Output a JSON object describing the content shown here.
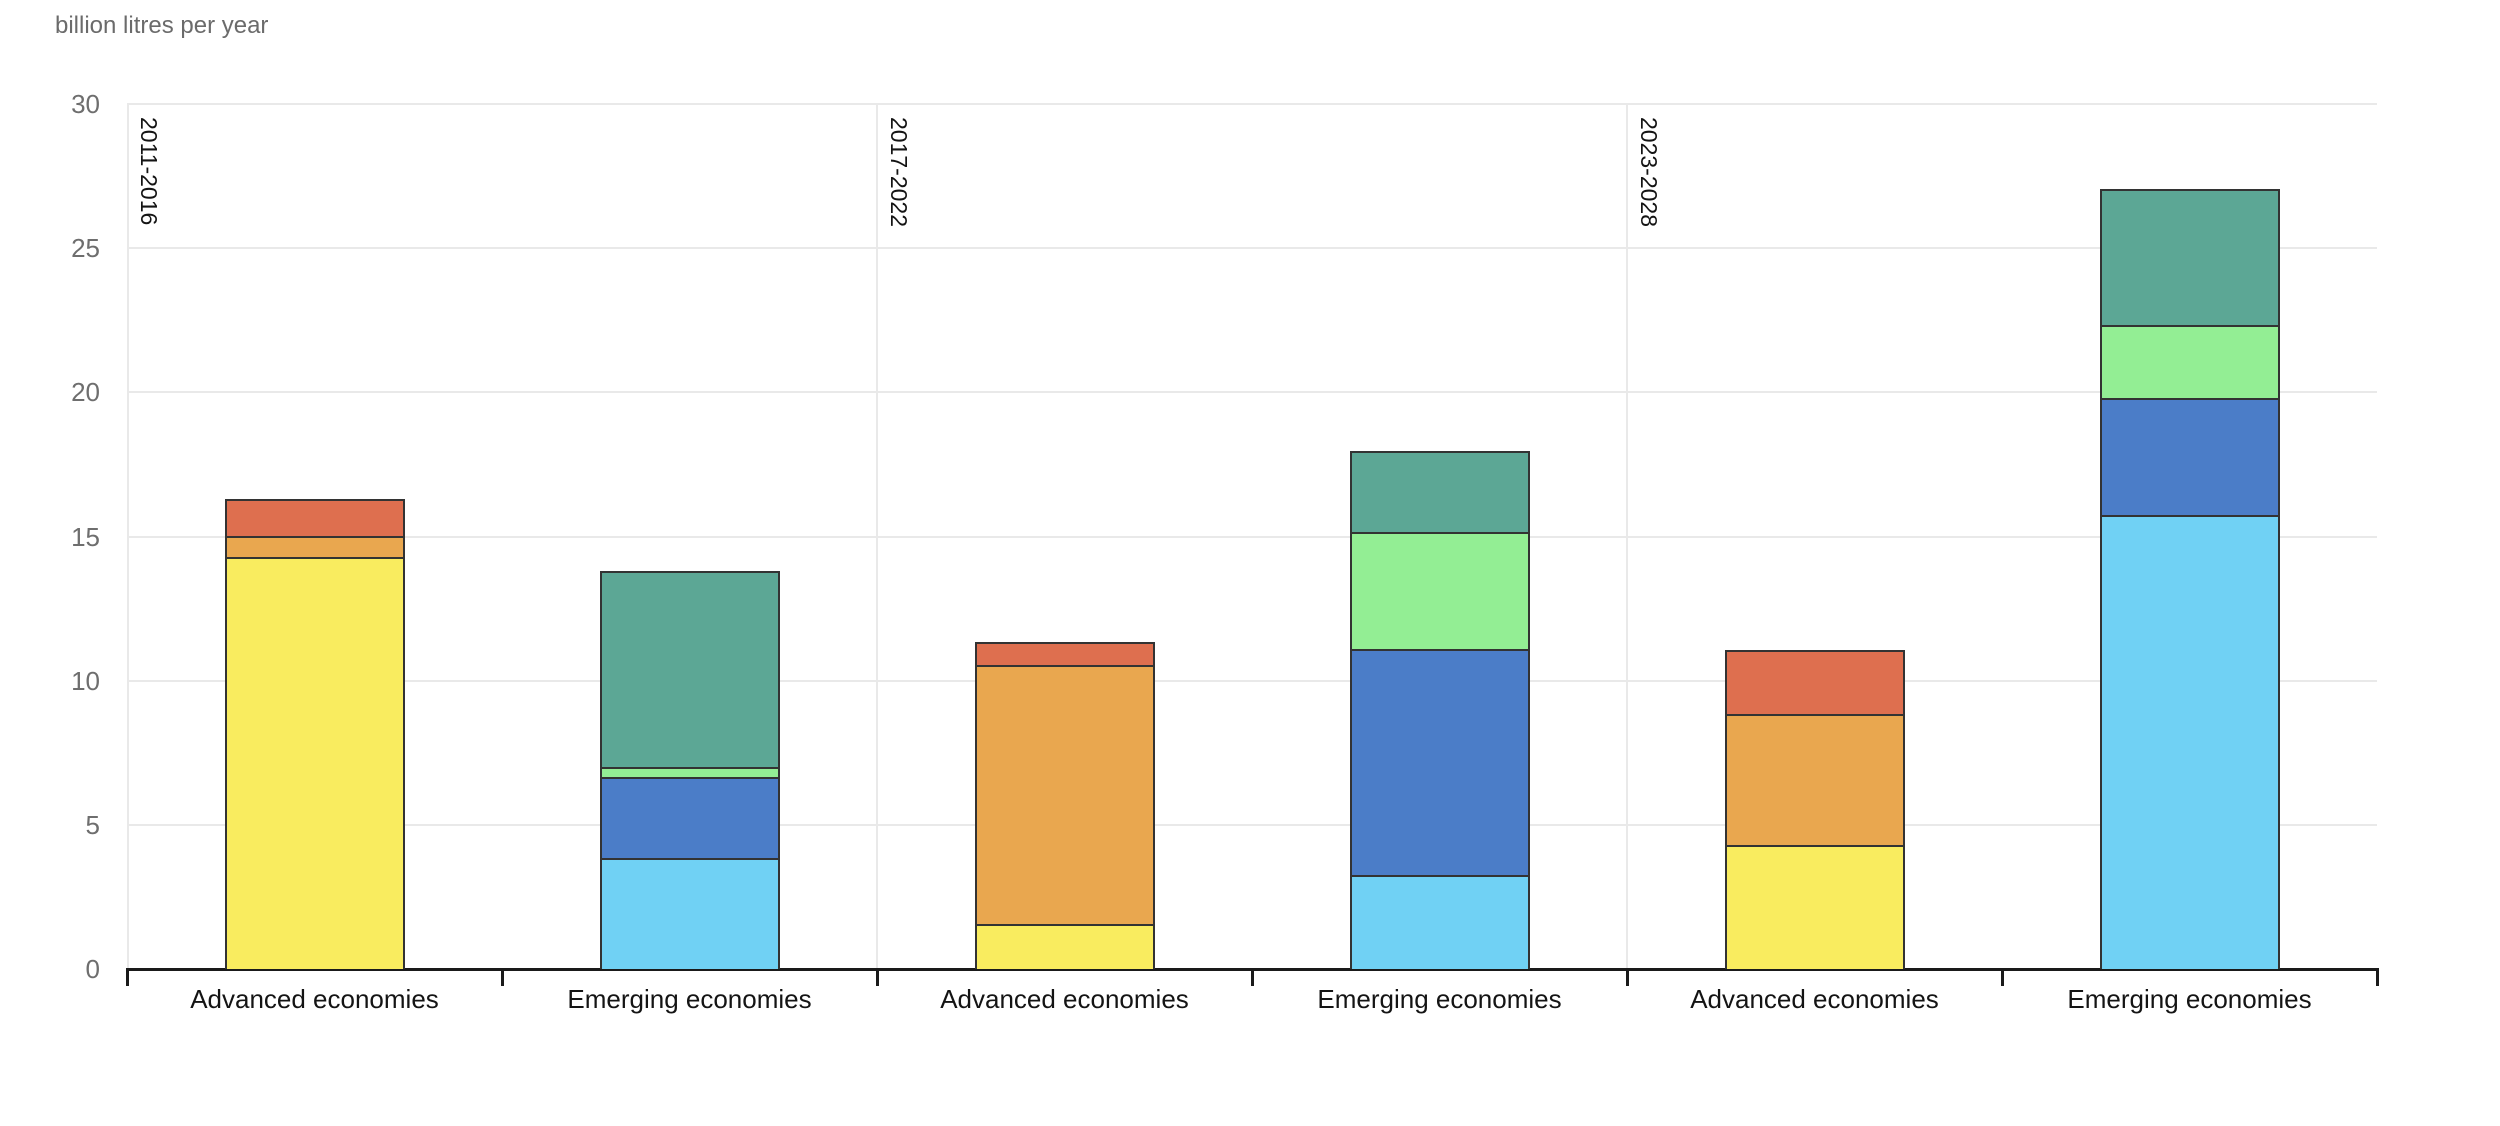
{
  "chart_data": {
    "type": "bar",
    "stacked": true,
    "title": "billion litres per year",
    "xlabel": "",
    "ylabel": "billion litres per year",
    "ylim": [
      0,
      30
    ],
    "yticks": [
      0,
      5,
      10,
      15,
      20,
      25,
      30
    ],
    "grid": "horizontal",
    "legend": "none",
    "panel_labels": [
      "2011-2016",
      "2017-2022",
      "2023-2028"
    ],
    "palette": {
      "yellow": "#F9EC5F",
      "orange": "#E9A74F",
      "red": "#DE6F4F",
      "sky_blue": "#70D1F4",
      "blue": "#4B7DC8",
      "light_green": "#93EE94",
      "teal": "#5CA795"
    },
    "bars": [
      {
        "period": "2011-2016",
        "category": "Advanced economies",
        "total": 16.3,
        "segments": [
          {
            "color": "yellow",
            "value": 14.3
          },
          {
            "color": "orange",
            "value": 0.7
          },
          {
            "color": "red",
            "value": 1.3
          }
        ]
      },
      {
        "period": "2011-2016",
        "category": "Emerging economies",
        "total": 13.8,
        "segments": [
          {
            "color": "sky_blue",
            "value": 3.85
          },
          {
            "color": "blue",
            "value": 2.8
          },
          {
            "color": "light_green",
            "value": 0.35
          },
          {
            "color": "teal",
            "value": 6.8
          }
        ]
      },
      {
        "period": "2017-2022",
        "category": "Advanced economies",
        "total": 11.35,
        "segments": [
          {
            "color": "yellow",
            "value": 1.55
          },
          {
            "color": "orange",
            "value": 9.0
          },
          {
            "color": "red",
            "value": 0.8
          }
        ]
      },
      {
        "period": "2017-2022",
        "category": "Emerging economies",
        "total": 17.95,
        "segments": [
          {
            "color": "sky_blue",
            "value": 3.25
          },
          {
            "color": "blue",
            "value": 7.85
          },
          {
            "color": "light_green",
            "value": 4.05
          },
          {
            "color": "teal",
            "value": 2.8
          }
        ]
      },
      {
        "period": "2023-2028",
        "category": "Advanced economies",
        "total": 11.05,
        "segments": [
          {
            "color": "yellow",
            "value": 4.3
          },
          {
            "color": "orange",
            "value": 4.55
          },
          {
            "color": "red",
            "value": 2.2
          }
        ]
      },
      {
        "period": "2023-2028",
        "category": "Emerging economies",
        "total": 27.05,
        "segments": [
          {
            "color": "sky_blue",
            "value": 15.75
          },
          {
            "color": "blue",
            "value": 4.05
          },
          {
            "color": "light_green",
            "value": 2.55
          },
          {
            "color": "teal",
            "value": 4.7
          }
        ]
      }
    ]
  }
}
